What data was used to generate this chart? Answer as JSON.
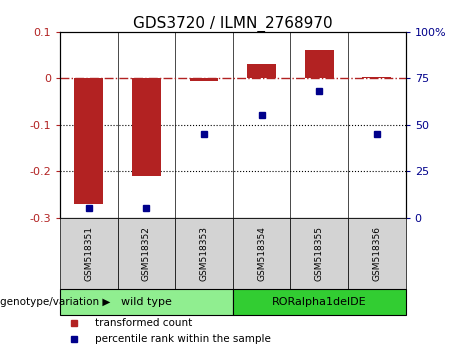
{
  "title": "GDS3720 / ILMN_2768970",
  "samples": [
    "GSM518351",
    "GSM518352",
    "GSM518353",
    "GSM518354",
    "GSM518355",
    "GSM518356"
  ],
  "red_bars": [
    -0.27,
    -0.21,
    -0.005,
    0.03,
    0.06,
    0.002
  ],
  "blue_points": [
    5,
    5,
    45,
    55,
    68,
    45
  ],
  "ylim_left": [
    -0.3,
    0.1
  ],
  "ylim_right": [
    0,
    100
  ],
  "yticks_left": [
    -0.3,
    -0.2,
    -0.1,
    0.0,
    0.1
  ],
  "yticks_right": [
    0,
    25,
    50,
    75,
    100
  ],
  "ytick_labels_left": [
    "-0.3",
    "-0.2",
    "-0.1",
    "0",
    "0.1"
  ],
  "ytick_labels_right": [
    "0",
    "25",
    "50",
    "75",
    "100%"
  ],
  "hlines_dotted": [
    -0.1,
    -0.2
  ],
  "hline_dashdot": 0.0,
  "bar_color": "#b22222",
  "point_color": "#00008b",
  "groups": [
    {
      "label": "wild type",
      "indices": [
        0,
        1,
        2
      ],
      "color": "#90ee90"
    },
    {
      "label": "RORalpha1delDE",
      "indices": [
        3,
        4,
        5
      ],
      "color": "#32cd32"
    }
  ],
  "group_label": "genotype/variation",
  "legend_items": [
    {
      "label": "transformed count",
      "color": "#b22222"
    },
    {
      "label": "percentile rank within the sample",
      "color": "#00008b"
    }
  ],
  "title_fontsize": 11,
  "tick_fontsize": 8,
  "label_fontsize": 8,
  "bar_width": 0.5,
  "cell_bg": "#d3d3d3"
}
